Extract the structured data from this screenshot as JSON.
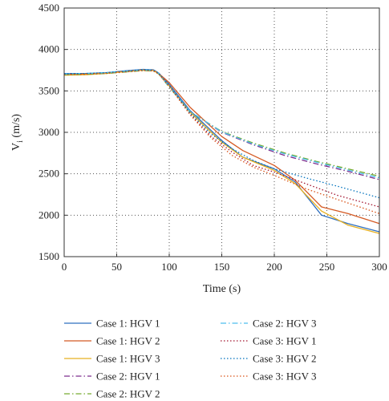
{
  "chart_data": {
    "type": "line",
    "xlabel": "Time (s)",
    "ylabel_main": "V",
    "ylabel_sub": "i",
    "ylabel_unit": " (m/s)",
    "xlim": [
      0,
      300
    ],
    "ylim": [
      1500,
      4500
    ],
    "x_ticks": [
      0,
      50,
      100,
      150,
      200,
      250,
      300
    ],
    "y_ticks": [
      1500,
      2000,
      2500,
      3000,
      3500,
      4000,
      4500
    ],
    "grid": "dotted",
    "legend_placement": "below, two columns",
    "series": [
      {
        "name": "Case 1: HGV 1",
        "color": "#2f6fbf",
        "dash": "solid",
        "x": [
          0,
          20,
          40,
          60,
          75,
          85,
          90,
          100,
          120,
          150,
          170,
          200,
          220,
          245,
          270,
          300
        ],
        "y": [
          3710,
          3710,
          3720,
          3745,
          3760,
          3755,
          3715,
          3580,
          3260,
          2900,
          2700,
          2560,
          2400,
          2000,
          1900,
          1800
        ]
      },
      {
        "name": "Case 1: HGV 2",
        "color": "#d45a24",
        "dash": "solid",
        "x": [
          0,
          20,
          40,
          60,
          75,
          85,
          90,
          100,
          120,
          150,
          170,
          200,
          220,
          245,
          270,
          300
        ],
        "y": [
          3700,
          3705,
          3715,
          3740,
          3755,
          3750,
          3710,
          3600,
          3300,
          2950,
          2780,
          2600,
          2420,
          2100,
          2020,
          1900
        ]
      },
      {
        "name": "Case 1: HGV 3",
        "color": "#e8b020",
        "dash": "solid",
        "x": [
          0,
          20,
          40,
          60,
          75,
          85,
          90,
          100,
          120,
          150,
          170,
          200,
          220,
          245,
          270,
          300
        ],
        "y": [
          3690,
          3695,
          3710,
          3735,
          3750,
          3745,
          3705,
          3560,
          3240,
          2880,
          2700,
          2540,
          2380,
          2050,
          1880,
          1780
        ]
      },
      {
        "name": "Case 2: HGV 1",
        "color": "#7e2f8e",
        "dash": "dashdot",
        "x": [
          0,
          20,
          40,
          60,
          75,
          85,
          90,
          100,
          120,
          150,
          180,
          210,
          240,
          270,
          300
        ],
        "y": [
          3700,
          3705,
          3715,
          3735,
          3750,
          3745,
          3710,
          3550,
          3250,
          3000,
          2850,
          2720,
          2620,
          2530,
          2430
        ]
      },
      {
        "name": "Case 2: HGV 2",
        "color": "#77ac30",
        "dash": "dashdot",
        "x": [
          0,
          20,
          40,
          60,
          75,
          85,
          90,
          100,
          120,
          150,
          180,
          210,
          240,
          270,
          300
        ],
        "y": [
          3695,
          3700,
          3710,
          3730,
          3745,
          3740,
          3705,
          3545,
          3245,
          3010,
          2870,
          2750,
          2650,
          2560,
          2470
        ]
      },
      {
        "name": "Case 2: HGV 3",
        "color": "#4dbeee",
        "dash": "dashdot",
        "x": [
          0,
          20,
          40,
          60,
          75,
          85,
          90,
          100,
          120,
          150,
          180,
          210,
          240,
          270,
          300
        ],
        "y": [
          3705,
          3710,
          3720,
          3740,
          3755,
          3750,
          3712,
          3552,
          3252,
          3005,
          2860,
          2740,
          2640,
          2545,
          2450
        ]
      },
      {
        "name": "Case 3: HGV 1",
        "color": "#a2142f",
        "dash": "dotted",
        "x": [
          0,
          20,
          40,
          60,
          75,
          85,
          90,
          100,
          120,
          140,
          160,
          180,
          200,
          230,
          260,
          300
        ],
        "y": [
          3700,
          3705,
          3715,
          3735,
          3750,
          3745,
          3708,
          3560,
          3220,
          2950,
          2760,
          2600,
          2520,
          2380,
          2240,
          2100
        ]
      },
      {
        "name": "Case 3: HGV 2",
        "color": "#0072bd",
        "dash": "dotted",
        "x": [
          0,
          20,
          40,
          60,
          75,
          85,
          90,
          100,
          120,
          140,
          160,
          180,
          200,
          230,
          260,
          300
        ],
        "y": [
          3705,
          3710,
          3720,
          3740,
          3755,
          3750,
          3712,
          3565,
          3230,
          2980,
          2800,
          2660,
          2560,
          2450,
          2350,
          2210
        ]
      },
      {
        "name": "Case 3: HGV 3",
        "color": "#d95319",
        "dash": "dotted",
        "x": [
          0,
          20,
          40,
          60,
          75,
          85,
          90,
          100,
          120,
          140,
          160,
          180,
          200,
          230,
          260,
          300
        ],
        "y": [
          3695,
          3700,
          3710,
          3730,
          3745,
          3740,
          3702,
          3555,
          3210,
          2930,
          2720,
          2580,
          2480,
          2320,
          2190,
          2020
        ]
      }
    ]
  }
}
